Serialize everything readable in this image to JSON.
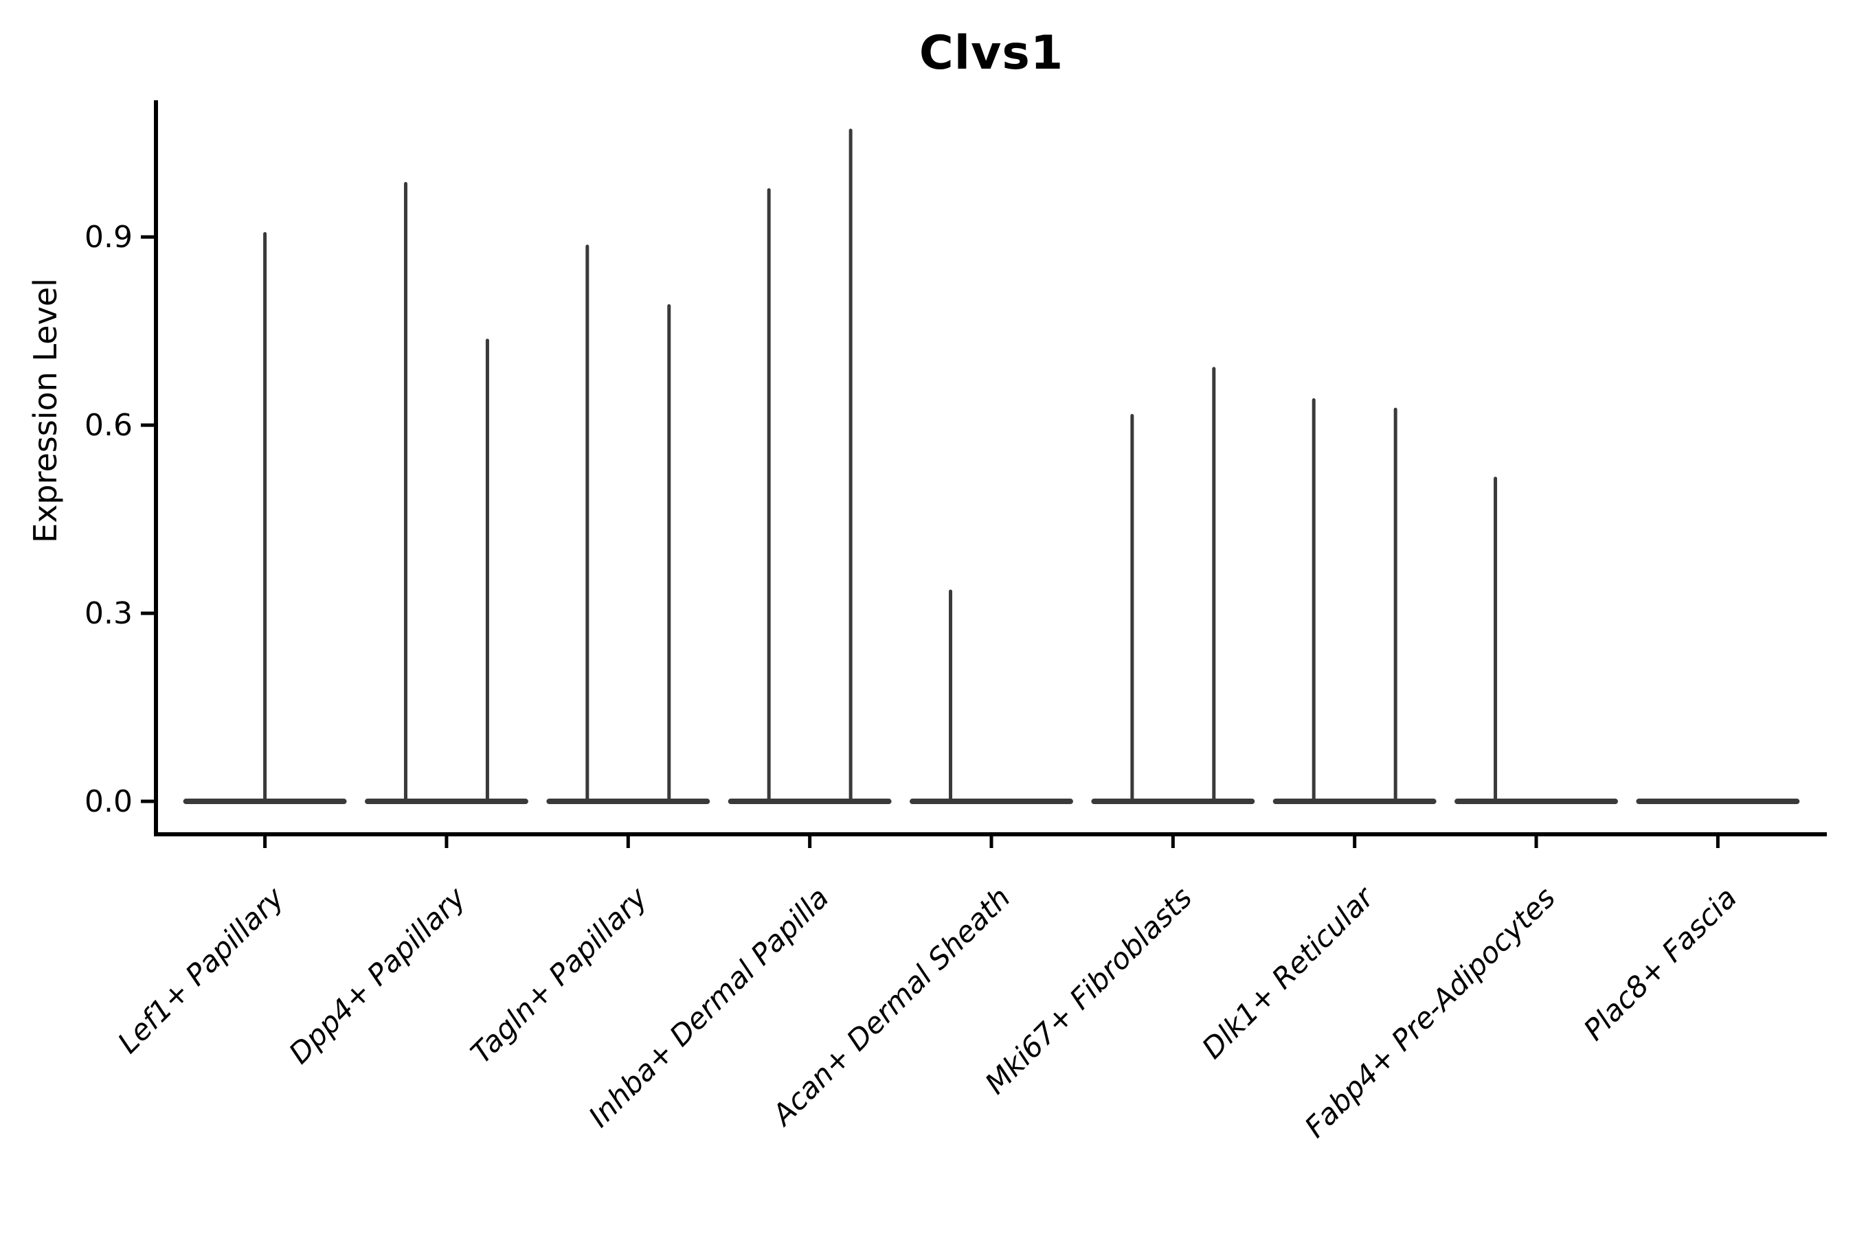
{
  "figure": {
    "title": "Clvs1",
    "y_axis_label": "Expression Level"
  },
  "colors": {
    "violin": "#3a3a3a",
    "axis": "#000000",
    "text": "#000000",
    "background": "#ffffff"
  },
  "chart_data": {
    "type": "violin",
    "title": "Clvs1",
    "ylabel": "Expression Level",
    "xlabel": "",
    "grid": false,
    "legend": "none",
    "categories": [
      "Lef1+ Papillary",
      "Dpp4+ Papillary",
      "Tagln+ Papillary",
      "Inhba+ Dermal Papilla",
      "Acan+ Dermal Sheath",
      "Mki67+ Fibroblasts",
      "Dlk1+ Reticular",
      "Fabp4+ Pre-Adipocytes",
      "Plac8+ Fascia"
    ],
    "violins": [
      {
        "category": "Lef1+ Papillary",
        "base_at_zero": true,
        "spikes": [
          {
            "pos": 0,
            "max": 0.905
          }
        ]
      },
      {
        "category": "Dpp4+ Papillary",
        "base_at_zero": true,
        "spikes": [
          {
            "pos": -0.225,
            "max": 0.985
          },
          {
            "pos": 0.225,
            "max": 0.735
          }
        ]
      },
      {
        "category": "Tagln+ Papillary",
        "base_at_zero": true,
        "spikes": [
          {
            "pos": -0.225,
            "max": 0.885
          },
          {
            "pos": 0.225,
            "max": 0.79
          }
        ]
      },
      {
        "category": "Inhba+ Dermal Papilla",
        "base_at_zero": true,
        "spikes": [
          {
            "pos": -0.225,
            "max": 0.975
          },
          {
            "pos": 0.225,
            "max": 1.07
          }
        ]
      },
      {
        "category": "Acan+ Dermal Sheath",
        "base_at_zero": true,
        "spikes": [
          {
            "pos": -0.225,
            "max": 0.335
          }
        ]
      },
      {
        "category": "Mki67+ Fibroblasts",
        "base_at_zero": true,
        "spikes": [
          {
            "pos": -0.225,
            "max": 0.615
          },
          {
            "pos": 0.225,
            "max": 0.69
          }
        ]
      },
      {
        "category": "Dlk1+ Reticular",
        "base_at_zero": true,
        "spikes": [
          {
            "pos": -0.225,
            "max": 0.64
          },
          {
            "pos": 0.225,
            "max": 0.625
          }
        ]
      },
      {
        "category": "Fabp4+ Pre-Adipocytes",
        "base_at_zero": true,
        "spikes": [
          {
            "pos": -0.225,
            "max": 0.515
          }
        ]
      },
      {
        "category": "Plac8+ Fascia",
        "base_at_zero": true,
        "spikes": []
      }
    ],
    "yticks": [
      "0.0",
      "0.3",
      "0.6",
      "0.9"
    ],
    "ytick_values": [
      0.0,
      0.3,
      0.6,
      0.9
    ],
    "ylim": [
      -0.0525,
      1.118
    ],
    "x_label_rotation_deg": 45,
    "x_label_style": "italic",
    "violin_halfwidth_units": 0.45,
    "spike_offset_units": 0.225
  }
}
